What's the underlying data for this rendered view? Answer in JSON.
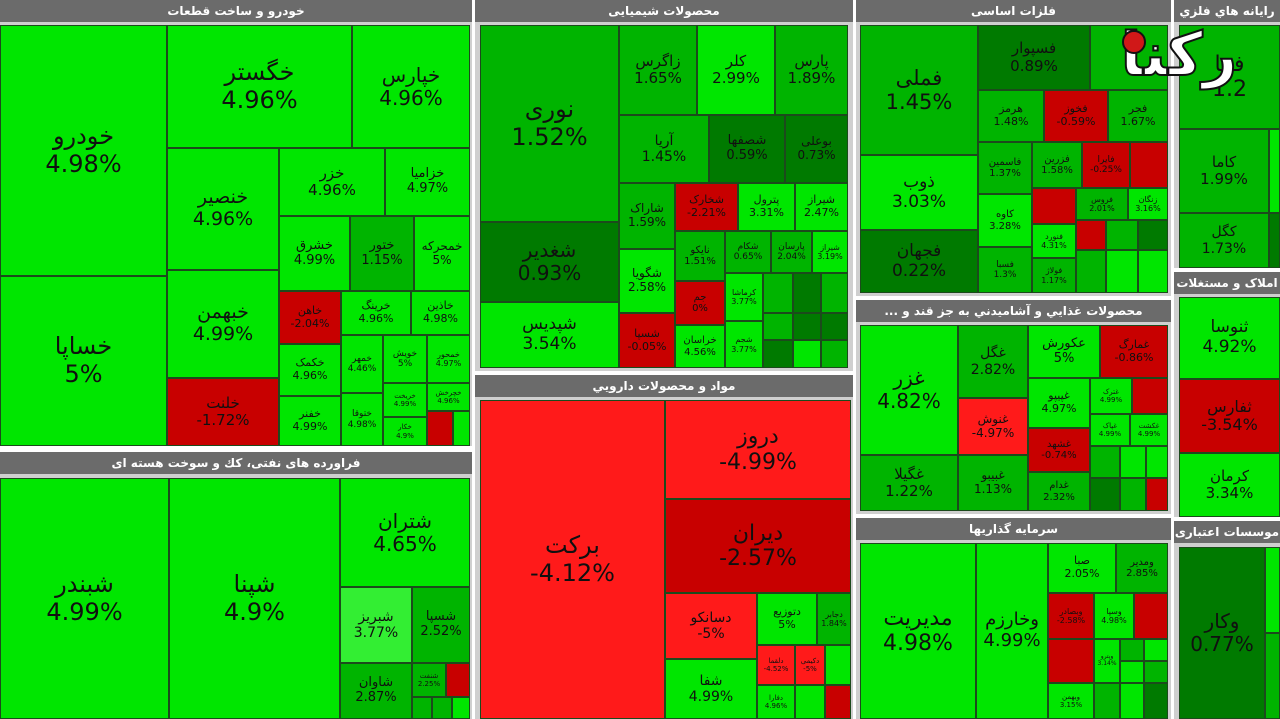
{
  "watermark": {
    "text": "رکنا"
  },
  "colors": {
    "bright_green": "#00e600",
    "green": "#00b400",
    "dark_green": "#007a00",
    "red": "#c80000",
    "bright_red": "#ff1a1a"
  },
  "sectors": [
    {
      "title": "خودرو و ساخت قطعات",
      "tiles": [
        {
          "name": "خودرو",
          "value": "4.98%"
        },
        {
          "name": "خساپا",
          "value": "5%"
        },
        {
          "name": "خگستر",
          "value": "4.96%"
        },
        {
          "name": "خپارس",
          "value": "4.96%"
        },
        {
          "name": "خنصیر",
          "value": "4.96%"
        },
        {
          "name": "خبهمن",
          "value": "4.99%"
        },
        {
          "name": "خلنت",
          "value": "-1.72%"
        },
        {
          "name": "خزر",
          "value": "4.96%"
        },
        {
          "name": "خزامیا",
          "value": "4.97%"
        },
        {
          "name": "خشرق",
          "value": "4.99%"
        },
        {
          "name": "ختور",
          "value": "1.15%"
        },
        {
          "name": "خمحرکه",
          "value": "5%"
        },
        {
          "name": "خاهن",
          "value": "-2.04%"
        },
        {
          "name": "خرینگ",
          "value": "4.96%"
        },
        {
          "name": "خاذین",
          "value": "4.98%"
        },
        {
          "name": "خکمک",
          "value": "4.96%"
        },
        {
          "name": "خمهر",
          "value": "4.46%"
        },
        {
          "name": "خویش",
          "value": "5%"
        },
        {
          "name": "خمحور",
          "value": "4.97%"
        },
        {
          "name": "خفنر",
          "value": "4.99%"
        },
        {
          "name": "ختوقا",
          "value": "4.98%"
        },
        {
          "name": "خریخت",
          "value": "4.99%"
        },
        {
          "name": "خچرخش",
          "value": "4.96%"
        },
        {
          "name": "خکار",
          "value": "4.9%"
        }
      ]
    },
    {
      "title": "محصولات شیمیایی",
      "tiles": [
        {
          "name": "نوری",
          "value": "1.52%"
        },
        {
          "name": "شغدیر",
          "value": "0.93%"
        },
        {
          "name": "شپدیس",
          "value": "3.54%"
        },
        {
          "name": "زاگرس",
          "value": "1.65%"
        },
        {
          "name": "کلر",
          "value": "2.99%"
        },
        {
          "name": "پارس",
          "value": "1.89%"
        },
        {
          "name": "آریا",
          "value": "1.45%"
        },
        {
          "name": "شصفها",
          "value": "0.59%"
        },
        {
          "name": "بوعلی",
          "value": "0.73%"
        },
        {
          "name": "شاراک",
          "value": "1.59%"
        },
        {
          "name": "شخارک",
          "value": "-2.21%"
        },
        {
          "name": "پترول",
          "value": "3.31%"
        },
        {
          "name": "شیراز",
          "value": "2.47%"
        },
        {
          "name": "شگویا",
          "value": "2.58%"
        },
        {
          "name": "نایکو",
          "value": "1.51%"
        },
        {
          "name": "شکام",
          "value": "0.65%"
        },
        {
          "name": "پارسان",
          "value": "2.04%"
        },
        {
          "name": "شیراز",
          "value": "3.19%"
        },
        {
          "name": "جم",
          "value": "0%"
        },
        {
          "name": "کرماشا",
          "value": "3.77%"
        },
        {
          "name": "شسپا",
          "value": "-0.05%"
        },
        {
          "name": "خراسان",
          "value": "4.56%"
        },
        {
          "name": "شجم",
          "value": "3.77%"
        }
      ]
    },
    {
      "title": "فلزات اساسی",
      "tiles": [
        {
          "name": "فملی",
          "value": "1.45%"
        },
        {
          "name": "ذوب",
          "value": "3.03%"
        },
        {
          "name": "فجهان",
          "value": "0.22%"
        },
        {
          "name": "فسپوار",
          "value": "0.89%"
        },
        {
          "name": "هرمز",
          "value": "1.48%"
        },
        {
          "name": "فخوز",
          "value": "-0.59%"
        },
        {
          "name": "فجر",
          "value": "1.67%"
        },
        {
          "name": "فاسمین",
          "value": "1.37%"
        },
        {
          "name": "فزرین",
          "value": "1.58%"
        },
        {
          "name": "فایرا",
          "value": "-0.25%"
        },
        {
          "name": "کاوه",
          "value": "3.28%"
        },
        {
          "name": "زنگان",
          "value": "3.16%"
        },
        {
          "name": "فنورد",
          "value": "4.31%"
        },
        {
          "name": "فسبا",
          "value": "1.3%"
        },
        {
          "name": "فروس",
          "value": "2.01%"
        },
        {
          "name": "فولاژ",
          "value": "1.17%"
        }
      ]
    },
    {
      "title": "رایانه هاي فلزي",
      "tiles": [
        {
          "name": "فما",
          "value": "1.2"
        },
        {
          "name": "کاما",
          "value": "1.99%"
        },
        {
          "name": "کگل",
          "value": "1.73%"
        }
      ]
    },
    {
      "title": "محصولات غذايي و آشاميدني به جز قند و ...",
      "tiles": [
        {
          "name": "غزر",
          "value": "4.82%"
        },
        {
          "name": "غگیلا",
          "value": "1.22%"
        },
        {
          "name": "غگل",
          "value": "2.82%"
        },
        {
          "name": "عکورش",
          "value": "5%"
        },
        {
          "name": "غمارگ",
          "value": "-0.86%"
        },
        {
          "name": "غپیپو",
          "value": "4.97%"
        },
        {
          "name": "غنوش",
          "value": "-4.97%"
        },
        {
          "name": "غشهد",
          "value": "-0.74%"
        },
        {
          "name": "غبیبو",
          "value": "1.13%"
        },
        {
          "name": "غدام",
          "value": "2.32%"
        },
        {
          "name": "غترک",
          "value": "4.99%"
        },
        {
          "name": "غپاک",
          "value": "4.99%"
        },
        {
          "name": "غکشت",
          "value": "4.99%"
        }
      ]
    },
    {
      "title": "املاک و مستغلات",
      "tiles": [
        {
          "name": "ثنوسا",
          "value": "4.92%"
        },
        {
          "name": "ثفارس",
          "value": "-3.54%"
        },
        {
          "name": "کرمان",
          "value": "3.34%"
        }
      ]
    },
    {
      "title": "فراورده های نفتی، کك و سوخت هسته ای",
      "tiles": [
        {
          "name": "شبندر",
          "value": "4.99%"
        },
        {
          "name": "شپنا",
          "value": "4.9%"
        },
        {
          "name": "شتران",
          "value": "4.65%"
        },
        {
          "name": "شبریز",
          "value": "3.77%"
        },
        {
          "name": "شسپا",
          "value": "2.52%"
        },
        {
          "name": "شاوان",
          "value": "2.87%"
        },
        {
          "name": "شنفت",
          "value": "2.25%"
        }
      ]
    },
    {
      "title": "مواد و محصولات دارويي",
      "tiles": [
        {
          "name": "برکت",
          "value": "-4.12%"
        },
        {
          "name": "دروز",
          "value": "-4.99%"
        },
        {
          "name": "دیران",
          "value": "-2.57%"
        },
        {
          "name": "دسانکو",
          "value": "-5%"
        },
        {
          "name": "دتوزیع",
          "value": "5%"
        },
        {
          "name": "دجابر",
          "value": "1.84%"
        },
        {
          "name": "شفا",
          "value": "4.99%"
        },
        {
          "name": "دلقما",
          "value": "-4.52%"
        },
        {
          "name": "دکیمی",
          "value": "-5%"
        },
        {
          "name": "دفارا",
          "value": "4.96%"
        }
      ]
    },
    {
      "title": "سرمایه گذاریها",
      "tiles": [
        {
          "name": "مدیریت",
          "value": "4.98%"
        },
        {
          "name": "وخارزم",
          "value": "4.99%"
        },
        {
          "name": "صبا",
          "value": "2.05%"
        },
        {
          "name": "ومدیر",
          "value": "2.85%"
        },
        {
          "name": "وبصادر",
          "value": "-2.58%"
        },
        {
          "name": "وسپا",
          "value": "4.98%"
        },
        {
          "name": "وبهمن",
          "value": "3.15%"
        },
        {
          "name": "وپترو",
          "value": "3.14%"
        }
      ]
    },
    {
      "title": "موسسات اعتباری",
      "tiles": [
        {
          "name": "وکار",
          "value": "0.77%"
        }
      ]
    }
  ]
}
